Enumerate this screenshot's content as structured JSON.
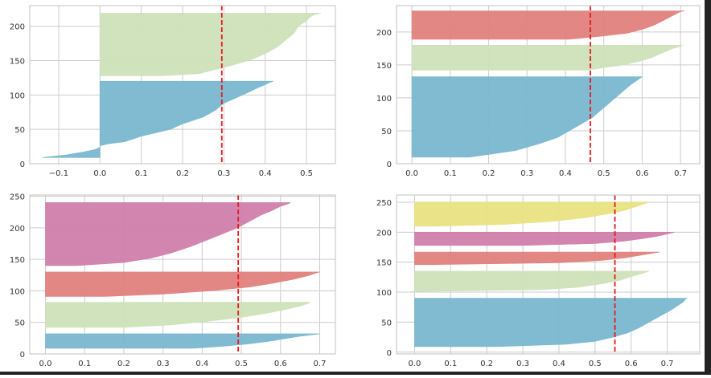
{
  "figure": {
    "grid": true,
    "axes_facecolor": "#ffffff",
    "grid_color": "#cccccc",
    "spine_color": "#cccccc",
    "threshold_line_color": "#e41a1c"
  },
  "chart_data": [
    {
      "type": "area",
      "title": "",
      "xlabel": "",
      "ylabel": "",
      "xlim": [
        -0.17,
        0.57
      ],
      "ylim": [
        0,
        230
      ],
      "xticks": [
        -0.1,
        0.0,
        0.1,
        0.2,
        0.3,
        0.4,
        0.5
      ],
      "xtick_labels": [
        "−0.1",
        "0.0",
        "0.1",
        "0.2",
        "0.3",
        "0.4",
        "0.5"
      ],
      "yticks": [
        0,
        50,
        100,
        150,
        200
      ],
      "ytick_labels": [
        "0",
        "50",
        "100",
        "150",
        "200"
      ],
      "threshold": 0.295,
      "clusters": [
        {
          "color": "#7ab7cf",
          "y_lower": 9,
          "y_upper": 120,
          "profile": [
            [
              9,
              -0.14
            ],
            [
              13,
              -0.08
            ],
            [
              17,
              -0.04
            ],
            [
              21,
              -0.01
            ],
            [
              24,
              0.0
            ],
            [
              26,
              0.0
            ],
            [
              29,
              0.02
            ],
            [
              32,
              0.06
            ],
            [
              40,
              0.1
            ],
            [
              50,
              0.17
            ],
            [
              58,
              0.2
            ],
            [
              68,
              0.25
            ],
            [
              78,
              0.28
            ],
            [
              88,
              0.3
            ],
            [
              96,
              0.33
            ],
            [
              104,
              0.36
            ],
            [
              110,
              0.38
            ],
            [
              115,
              0.4
            ],
            [
              118,
              0.41
            ],
            [
              120,
              0.42
            ]
          ]
        },
        {
          "color": "#cfe1b9",
          "y_lower": 128,
          "y_upper": 219,
          "profile": [
            [
              128,
              0.15
            ],
            [
              131,
              0.24
            ],
            [
              140,
              0.3
            ],
            [
              150,
              0.36
            ],
            [
              160,
              0.4
            ],
            [
              170,
              0.43
            ],
            [
              180,
              0.45
            ],
            [
              190,
              0.47
            ],
            [
              200,
              0.48
            ],
            [
              208,
              0.5
            ],
            [
              214,
              0.51
            ],
            [
              217,
              0.52
            ],
            [
              219,
              0.535
            ]
          ]
        }
      ]
    },
    {
      "type": "area",
      "title": "",
      "xlabel": "",
      "ylabel": "",
      "xlim": [
        -0.04,
        0.75
      ],
      "ylim": [
        0,
        240
      ],
      "xticks": [
        0.0,
        0.1,
        0.2,
        0.3,
        0.4,
        0.5,
        0.6,
        0.7
      ],
      "xtick_labels": [
        "0.0",
        "0.1",
        "0.2",
        "0.3",
        "0.4",
        "0.5",
        "0.6",
        "0.7"
      ],
      "yticks": [
        0,
        50,
        100,
        150,
        200
      ],
      "ytick_labels": [
        "0",
        "50",
        "100",
        "150",
        "200"
      ],
      "threshold": 0.465,
      "clusters": [
        {
          "color": "#7ab7cf",
          "y_lower": 10,
          "y_upper": 132,
          "profile": [
            [
              10,
              0.15
            ],
            [
              14,
              0.2
            ],
            [
              20,
              0.27
            ],
            [
              30,
              0.33
            ],
            [
              40,
              0.38
            ],
            [
              50,
              0.41
            ],
            [
              60,
              0.44
            ],
            [
              70,
              0.47
            ],
            [
              80,
              0.49
            ],
            [
              90,
              0.51
            ],
            [
              100,
              0.53
            ],
            [
              110,
              0.55
            ],
            [
              120,
              0.57
            ],
            [
              126,
              0.585
            ],
            [
              130,
              0.595
            ],
            [
              132,
              0.6
            ]
          ]
        },
        {
          "color": "#cfe1b9",
          "y_lower": 142,
          "y_upper": 180,
          "profile": [
            [
              142,
              0.46
            ],
            [
              146,
              0.5
            ],
            [
              150,
              0.55
            ],
            [
              155,
              0.59
            ],
            [
              160,
              0.62
            ],
            [
              165,
              0.64
            ],
            [
              170,
              0.66
            ],
            [
              175,
              0.68
            ],
            [
              178,
              0.7
            ],
            [
              180,
              0.705
            ]
          ]
        },
        {
          "color": "#e0817c",
          "y_lower": 189,
          "y_upper": 232,
          "profile": [
            [
              189,
              0.41
            ],
            [
              194,
              0.5
            ],
            [
              198,
              0.56
            ],
            [
              204,
              0.6
            ],
            [
              210,
              0.63
            ],
            [
              216,
              0.65
            ],
            [
              222,
              0.67
            ],
            [
              228,
              0.69
            ],
            [
              231,
              0.7
            ],
            [
              232,
              0.71
            ]
          ]
        }
      ]
    },
    {
      "type": "area",
      "title": "",
      "xlabel": "",
      "ylabel": "",
      "xlim": [
        -0.04,
        0.74
      ],
      "ylim": [
        0,
        252
      ],
      "xticks": [
        0.0,
        0.1,
        0.2,
        0.3,
        0.4,
        0.5,
        0.6,
        0.7
      ],
      "xtick_labels": [
        "0.0",
        "0.1",
        "0.2",
        "0.3",
        "0.4",
        "0.5",
        "0.6",
        "0.7"
      ],
      "yticks": [
        0,
        50,
        100,
        150,
        200,
        250
      ],
      "ytick_labels": [
        "0",
        "50",
        "100",
        "150",
        "200",
        "250"
      ],
      "threshold": 0.492,
      "clusters": [
        {
          "color": "#7ab7cf",
          "y_lower": 9,
          "y_upper": 32,
          "profile": [
            [
              9,
              0.38
            ],
            [
              12,
              0.45
            ],
            [
              16,
              0.52
            ],
            [
              20,
              0.57
            ],
            [
              24,
              0.61
            ],
            [
              28,
              0.65
            ],
            [
              31,
              0.69
            ],
            [
              32,
              0.7
            ]
          ]
        },
        {
          "color": "#cfe1b9",
          "y_lower": 42,
          "y_upper": 82,
          "profile": [
            [
              42,
              0.2
            ],
            [
              46,
              0.32
            ],
            [
              52,
              0.42
            ],
            [
              58,
              0.5
            ],
            [
              64,
              0.56
            ],
            [
              70,
              0.61
            ],
            [
              76,
              0.65
            ],
            [
              80,
              0.67
            ],
            [
              82,
              0.675
            ]
          ]
        },
        {
          "color": "#e0817c",
          "y_lower": 91,
          "y_upper": 130,
          "profile": [
            [
              91,
              0.15
            ],
            [
              95,
              0.3
            ],
            [
              100,
              0.42
            ],
            [
              106,
              0.52
            ],
            [
              112,
              0.58
            ],
            [
              118,
              0.63
            ],
            [
              124,
              0.67
            ],
            [
              128,
              0.69
            ],
            [
              130,
              0.7
            ]
          ]
        },
        {
          "color": "#d07eaa",
          "y_lower": 140,
          "y_upper": 240,
          "profile": [
            [
              140,
              0.08
            ],
            [
              145,
              0.2
            ],
            [
              152,
              0.27
            ],
            [
              160,
              0.32
            ],
            [
              170,
              0.37
            ],
            [
              180,
              0.41
            ],
            [
              190,
              0.45
            ],
            [
              200,
              0.49
            ],
            [
              210,
              0.52
            ],
            [
              220,
              0.55
            ],
            [
              228,
              0.58
            ],
            [
              234,
              0.6
            ],
            [
              238,
              0.62
            ],
            [
              240,
              0.625
            ]
          ]
        }
      ]
    },
    {
      "type": "area",
      "title": "",
      "xlabel": "",
      "ylabel": "",
      "xlim": [
        -0.05,
        0.79
      ],
      "ylim": [
        -3,
        262
      ],
      "xticks": [
        0.0,
        0.1,
        0.2,
        0.3,
        0.4,
        0.5,
        0.6,
        0.7
      ],
      "xtick_labels": [
        "0.0",
        "0.1",
        "0.2",
        "0.3",
        "0.4",
        "0.5",
        "0.6",
        "0.7"
      ],
      "yticks": [
        0,
        50,
        100,
        150,
        200,
        250
      ],
      "ytick_labels": [
        "0",
        "50",
        "100",
        "150",
        "200",
        "250"
      ],
      "threshold": 0.555,
      "clusters": [
        {
          "color": "#7ab7cf",
          "y_lower": 9,
          "y_upper": 90,
          "profile": [
            [
              9,
              0.22
            ],
            [
              13,
              0.42
            ],
            [
              18,
              0.5
            ],
            [
              25,
              0.55
            ],
            [
              32,
              0.59
            ],
            [
              40,
              0.62
            ],
            [
              50,
              0.65
            ],
            [
              60,
              0.68
            ],
            [
              70,
              0.71
            ],
            [
              78,
              0.73
            ],
            [
              84,
              0.745
            ],
            [
              88,
              0.75
            ],
            [
              90,
              0.755
            ]
          ]
        },
        {
          "color": "#cfe1b9",
          "y_lower": 101,
          "y_upper": 135,
          "profile": [
            [
              101,
              -0.01
            ],
            [
              104,
              0.35
            ],
            [
              108,
              0.45
            ],
            [
              114,
              0.52
            ],
            [
              120,
              0.57
            ],
            [
              126,
              0.6
            ],
            [
              131,
              0.63
            ],
            [
              135,
              0.65
            ]
          ]
        },
        {
          "color": "#e0817c",
          "y_lower": 146,
          "y_upper": 167,
          "profile": [
            [
              146,
              0.05
            ],
            [
              149,
              0.4
            ],
            [
              153,
              0.52
            ],
            [
              157,
              0.58
            ],
            [
              161,
              0.62
            ],
            [
              164,
              0.65
            ],
            [
              167,
              0.68
            ]
          ]
        },
        {
          "color": "#d07eaa",
          "y_lower": 178,
          "y_upper": 200,
          "profile": [
            [
              178,
              0.3
            ],
            [
              181,
              0.5
            ],
            [
              185,
              0.58
            ],
            [
              189,
              0.63
            ],
            [
              193,
              0.67
            ],
            [
              197,
              0.7
            ],
            [
              200,
              0.72
            ]
          ]
        },
        {
          "color": "#e9e281",
          "y_lower": 210,
          "y_upper": 250,
          "profile": [
            [
              210,
              0.05
            ],
            [
              213,
              0.25
            ],
            [
              218,
              0.38
            ],
            [
              224,
              0.47
            ],
            [
              230,
              0.53
            ],
            [
              236,
              0.58
            ],
            [
              242,
              0.61
            ],
            [
              246,
              0.63
            ],
            [
              250,
              0.65
            ]
          ]
        }
      ]
    }
  ]
}
